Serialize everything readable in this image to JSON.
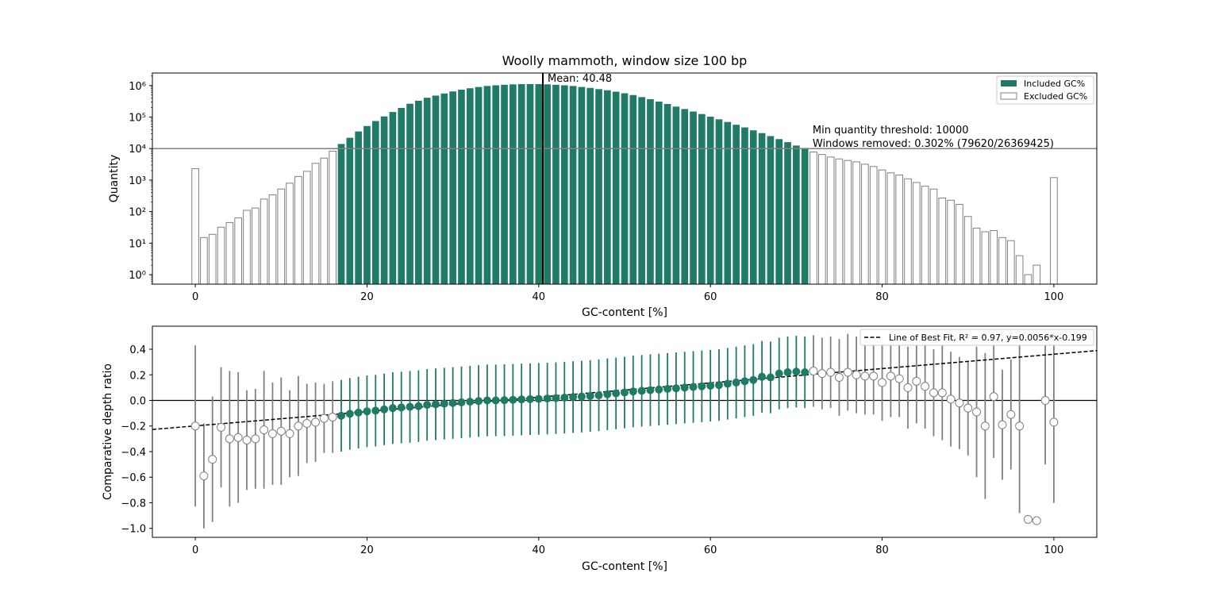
{
  "title": "Woolly mammoth, window size 100 bp",
  "colors": {
    "included": "#1f7a66",
    "excluded_edge": "#808080",
    "threshold": "#808080",
    "mean_line": "#000000",
    "errorbar_excluded": "#808080"
  },
  "chart_data": [
    {
      "type": "bar",
      "yscale": "log",
      "xlabel": "GC-content [%]",
      "ylabel": "Quantity",
      "xlim": [
        -5,
        105
      ],
      "ylim": [
        0.5,
        2500000
      ],
      "xticks": [
        0,
        20,
        40,
        60,
        80,
        100
      ],
      "yticks": [
        1,
        10,
        100,
        1000,
        10000,
        100000,
        1000000
      ],
      "ytick_labels": [
        "10⁰",
        "10¹",
        "10²",
        "10³",
        "10⁴",
        "10⁵",
        "10⁶"
      ],
      "x": [
        0,
        1,
        2,
        3,
        4,
        5,
        6,
        7,
        8,
        9,
        10,
        11,
        12,
        13,
        14,
        15,
        16,
        17,
        18,
        19,
        20,
        21,
        22,
        23,
        24,
        25,
        26,
        27,
        28,
        29,
        30,
        31,
        32,
        33,
        34,
        35,
        36,
        37,
        38,
        39,
        40,
        41,
        42,
        43,
        44,
        45,
        46,
        47,
        48,
        49,
        50,
        51,
        52,
        53,
        54,
        55,
        56,
        57,
        58,
        59,
        60,
        61,
        62,
        63,
        64,
        65,
        66,
        67,
        68,
        69,
        70,
        71,
        72,
        73,
        74,
        75,
        76,
        77,
        78,
        79,
        80,
        81,
        82,
        83,
        84,
        85,
        86,
        87,
        88,
        89,
        90,
        91,
        92,
        93,
        94,
        95,
        96,
        97,
        98,
        99,
        100
      ],
      "values": [
        2300,
        15,
        19,
        32,
        45,
        63,
        110,
        130,
        250,
        340,
        520,
        800,
        1300,
        1900,
        3400,
        5000,
        8300,
        14000,
        22000,
        35000,
        52000,
        75000,
        105000,
        145000,
        195000,
        265000,
        330000,
        410000,
        480000,
        560000,
        650000,
        740000,
        820000,
        900000,
        970000,
        1020000,
        1060000,
        1090000,
        1110000,
        1120000,
        1110000,
        1090000,
        1060000,
        1020000,
        970000,
        900000,
        840000,
        770000,
        710000,
        640000,
        570000,
        500000,
        430000,
        370000,
        310000,
        260000,
        215000,
        180000,
        150000,
        125000,
        103000,
        85000,
        70000,
        57000,
        47000,
        38000,
        31000,
        25000,
        20000,
        16000,
        12500,
        10500,
        7800,
        6500,
        5400,
        4700,
        4200,
        3800,
        3200,
        2700,
        2100,
        1700,
        1450,
        1100,
        840,
        640,
        520,
        270,
        230,
        170,
        70,
        30,
        23,
        25,
        15,
        12,
        4,
        1,
        2,
        0,
        1200
      ],
      "included_range": [
        17,
        71
      ],
      "series": [
        {
          "name": "Included GC%"
        },
        {
          "name": "Excluded GC%"
        }
      ],
      "legend_position": "top-right",
      "mean": 40.48,
      "mean_label": "Mean: 40.48",
      "threshold": 10000,
      "annotation": [
        "Min quantity threshold: 10000",
        "Windows removed: 0.302% (79620/26369425)"
      ]
    },
    {
      "type": "scatter",
      "xlabel": "GC-content [%]",
      "ylabel": "Comparative depth ratio",
      "xlim": [
        -5,
        105
      ],
      "ylim": [
        -1.07,
        0.58
      ],
      "xticks": [
        0,
        20,
        40,
        60,
        80,
        100
      ],
      "yticks": [
        -1.0,
        -0.8,
        -0.6,
        -0.4,
        -0.2,
        0.0,
        0.2,
        0.4
      ],
      "ytick_labels": [
        "−1.0",
        "−0.8",
        "−0.6",
        "−0.4",
        "−0.2",
        "0.0",
        "0.2",
        "0.4"
      ],
      "x": [
        0,
        1,
        2,
        3,
        4,
        5,
        6,
        7,
        8,
        9,
        10,
        11,
        12,
        13,
        14,
        15,
        16,
        17,
        18,
        19,
        20,
        21,
        22,
        23,
        24,
        25,
        26,
        27,
        28,
        29,
        30,
        31,
        32,
        33,
        34,
        35,
        36,
        37,
        38,
        39,
        40,
        41,
        42,
        43,
        44,
        45,
        46,
        47,
        48,
        49,
        50,
        51,
        52,
        53,
        54,
        55,
        56,
        57,
        58,
        59,
        60,
        61,
        62,
        63,
        64,
        65,
        66,
        67,
        68,
        69,
        70,
        71,
        72,
        73,
        74,
        75,
        76,
        77,
        78,
        79,
        80,
        81,
        82,
        83,
        84,
        85,
        86,
        87,
        88,
        89,
        90,
        91,
        92,
        93,
        94,
        95,
        96,
        97,
        98,
        99,
        100
      ],
      "y": [
        -0.2,
        -0.59,
        -0.46,
        -0.21,
        -0.3,
        -0.29,
        -0.31,
        -0.3,
        -0.23,
        -0.26,
        -0.24,
        -0.26,
        -0.2,
        -0.18,
        -0.17,
        -0.14,
        -0.13,
        -0.12,
        -0.105,
        -0.095,
        -0.085,
        -0.08,
        -0.07,
        -0.06,
        -0.055,
        -0.05,
        -0.045,
        -0.035,
        -0.03,
        -0.025,
        -0.02,
        -0.015,
        -0.01,
        -0.005,
        0.0,
        0.0,
        0.002,
        0.005,
        0.008,
        0.01,
        0.012,
        0.015,
        0.018,
        0.022,
        0.026,
        0.03,
        0.035,
        0.04,
        0.048,
        0.055,
        0.062,
        0.07,
        0.075,
        0.08,
        0.085,
        0.09,
        0.095,
        0.1,
        0.105,
        0.11,
        0.115,
        0.12,
        0.13,
        0.14,
        0.15,
        0.16,
        0.185,
        0.18,
        0.21,
        0.22,
        0.225,
        0.22,
        0.23,
        0.21,
        0.22,
        0.18,
        0.22,
        0.2,
        0.19,
        0.19,
        0.14,
        0.19,
        0.17,
        0.1,
        0.15,
        0.11,
        0.06,
        0.06,
        0.01,
        -0.02,
        -0.06,
        -0.09,
        -0.2,
        0.03,
        -0.19,
        -0.11,
        -0.2,
        -0.93,
        -0.94,
        0.0,
        -0.17
      ],
      "yerr": [
        0.63,
        0.41,
        0.49,
        0.47,
        0.53,
        0.51,
        0.39,
        0.39,
        0.46,
        0.4,
        0.42,
        0.34,
        0.39,
        0.31,
        0.31,
        0.27,
        0.28,
        0.28,
        0.28,
        0.28,
        0.28,
        0.28,
        0.28,
        0.28,
        0.28,
        0.28,
        0.28,
        0.28,
        0.28,
        0.28,
        0.28,
        0.28,
        0.28,
        0.28,
        0.28,
        0.28,
        0.28,
        0.28,
        0.28,
        0.28,
        0.28,
        0.28,
        0.28,
        0.28,
        0.28,
        0.28,
        0.28,
        0.28,
        0.28,
        0.28,
        0.28,
        0.28,
        0.28,
        0.28,
        0.28,
        0.28,
        0.28,
        0.28,
        0.28,
        0.28,
        0.28,
        0.28,
        0.28,
        0.28,
        0.28,
        0.28,
        0.28,
        0.28,
        0.28,
        0.28,
        0.28,
        0.28,
        0.28,
        0.28,
        0.28,
        0.3,
        0.3,
        0.3,
        0.3,
        0.3,
        0.3,
        0.32,
        0.3,
        0.32,
        0.33,
        0.33,
        0.34,
        0.37,
        0.37,
        0.36,
        0.37,
        0.51,
        0.57,
        0.48,
        0.43,
        0.43,
        0.68,
        0,
        0,
        0.5,
        0.63
      ],
      "included_range": [
        17,
        71
      ],
      "hidden_errorbars": [
        97,
        98
      ],
      "fit": {
        "slope": 0.0056,
        "intercept": -0.199,
        "label": "Line of Best Fit, R² = 0.97, y=0.0056*x-0.199"
      },
      "legend_position": "top-right",
      "zero_line": 0
    }
  ]
}
